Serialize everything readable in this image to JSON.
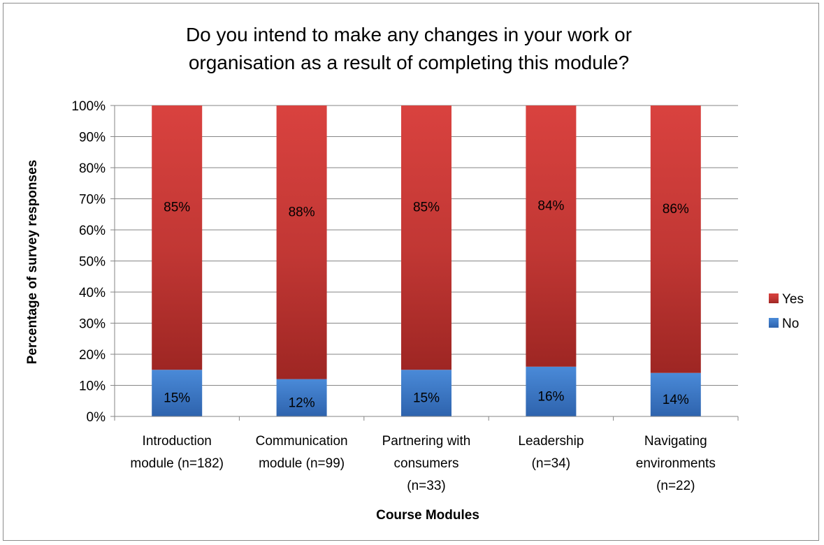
{
  "chart_data": {
    "type": "bar",
    "stacked": true,
    "title_lines": [
      "Do you intend to make any changes in your work or",
      "organisation as a result of completing this module?"
    ],
    "xlabel": "Course Modules",
    "ylabel": "Percentage of survey responses",
    "ylim": [
      0,
      100
    ],
    "y_ticks": [
      "0%",
      "10%",
      "20%",
      "30%",
      "40%",
      "50%",
      "60%",
      "70%",
      "80%",
      "90%",
      "100%"
    ],
    "y_tick_values": [
      0,
      10,
      20,
      30,
      40,
      50,
      60,
      70,
      80,
      90,
      100
    ],
    "grid": true,
    "legend_position": "right",
    "categories": [
      [
        "Introduction",
        "module (n=182)"
      ],
      [
        "Communication",
        "module (n=99)"
      ],
      [
        "Partnering with",
        "consumers",
        "(n=33)"
      ],
      [
        "Leadership",
        "(n=34)"
      ],
      [
        "Navigating",
        "environments",
        "(n=22)"
      ]
    ],
    "series": [
      {
        "name": "No",
        "color": "#3f7fcf",
        "values": [
          15,
          12,
          15,
          16,
          14
        ],
        "labels": [
          "15%",
          "12%",
          "15%",
          "16%",
          "14%"
        ]
      },
      {
        "name": "Yes",
        "color": "#c63a38",
        "values": [
          85,
          88,
          85,
          84,
          86
        ],
        "labels": [
          "85%",
          "88%",
          "85%",
          "84%",
          "86%"
        ]
      }
    ],
    "legend_order": [
      "Yes",
      "No"
    ]
  }
}
